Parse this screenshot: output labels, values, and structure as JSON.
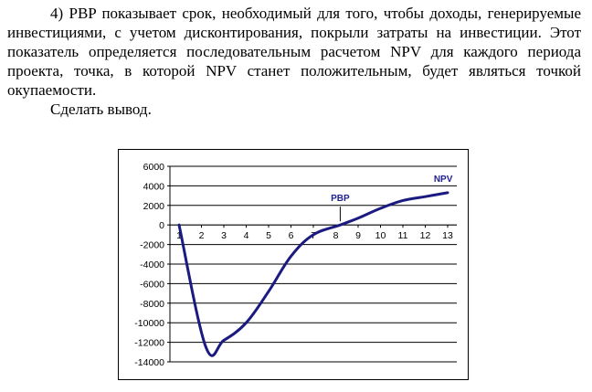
{
  "document": {
    "paragraphs": [
      "4) PBP показывает срок, необходимый для того, чтобы доходы, генерируемые инвестициями, с учетом дисконтирования, покрыли затраты на инвестиции. Этот показатель определяется последовательным расчетом NPV для каждого периода проекта, точка, в которой NPV станет положительным, будет являться точкой окупаемости.",
      "Сделать вывод."
    ]
  },
  "chart_data": {
    "type": "line",
    "title": "",
    "xlabel": "",
    "ylabel": "",
    "categories": [
      "1",
      "2",
      "3",
      "4",
      "5",
      "6",
      "7",
      "8",
      "9",
      "10",
      "11",
      "12",
      "13"
    ],
    "x": [
      1,
      2.2,
      3,
      4,
      5,
      6,
      7,
      8.2,
      9,
      10,
      11,
      12,
      13
    ],
    "y": [
      0,
      -12500,
      -11800,
      -10000,
      -6800,
      -3200,
      -1000,
      0,
      700,
      1700,
      2500,
      2900,
      3300
    ],
    "ylim": [
      -14000,
      6000
    ],
    "yticks": [
      6000,
      4000,
      2000,
      0,
      -2000,
      -4000,
      -6000,
      -8000,
      -10000,
      -12000,
      -14000
    ],
    "grid": true,
    "legend": "none",
    "line_color": "#1a1a80",
    "annotations": [
      {
        "text": "PBP",
        "x": 8.2,
        "y": 0
      },
      {
        "text": "NPV",
        "x": 12.8,
        "y": 3300
      }
    ]
  }
}
